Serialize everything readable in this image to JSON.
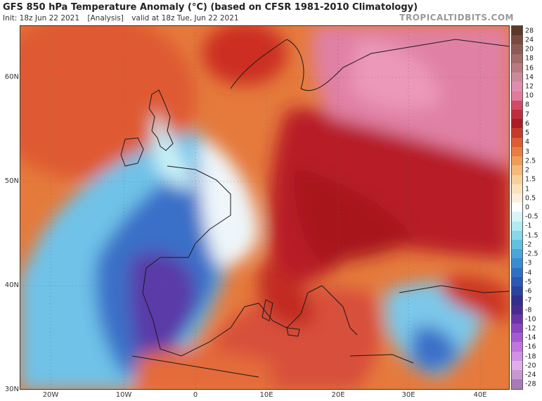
{
  "header": {
    "title": "GFS 850 hPa Temperature Anomaly (°C) (based on CFSR 1981-2010 Climatology)",
    "init": "Init: 18z Jun 22 2021",
    "analysis": "[Analysis]",
    "valid": "valid at 18z Tue, Jun 22 2021",
    "brand": "TROPICALTIDBITS.COM"
  },
  "axes": {
    "lat_labels": [
      "60N",
      "50N",
      "40N",
      "30N"
    ],
    "lon_labels": [
      "20W",
      "10W",
      "0",
      "10E",
      "20E",
      "30E",
      "40E"
    ]
  },
  "colorbar": {
    "labels": [
      "28",
      "24",
      "20",
      "18",
      "16",
      "14",
      "12",
      "10",
      "8",
      "7",
      "6",
      "5",
      "4",
      "3",
      "2.5",
      "2",
      "1.5",
      "1",
      "0.5",
      "0",
      "-0.5",
      "-1",
      "-1.5",
      "-2",
      "-2.5",
      "-3",
      "-4",
      "-5",
      "-6",
      "-7",
      "-8",
      "-10",
      "-12",
      "-14",
      "-16",
      "-18",
      "-20",
      "-24",
      "-28"
    ],
    "colors": [
      "#5a3a2a",
      "#7a4a40",
      "#8e5a56",
      "#a46a6a",
      "#b87a80",
      "#cc8a98",
      "#e08cb0",
      "#e27a9c",
      "#cf4a62",
      "#be2e3c",
      "#ad1c26",
      "#c63a2a",
      "#dc5c33",
      "#e87c43",
      "#ef9c58",
      "#f4b878",
      "#f7d09a",
      "#f9e2bc",
      "#fbeedd",
      "#ffffff",
      "#d8f4f8",
      "#b0eaf2",
      "#86d8ea",
      "#62c0e0",
      "#48a6d8",
      "#3a8cd0",
      "#3070c4",
      "#2a58b4",
      "#2a44a0",
      "#30308c",
      "#4a2c90",
      "#6a34a8",
      "#8a44c0",
      "#a45ad0",
      "#c074dc",
      "#d290e4",
      "#e2aeea",
      "#c69ad0",
      "#a67cb8"
    ]
  }
}
